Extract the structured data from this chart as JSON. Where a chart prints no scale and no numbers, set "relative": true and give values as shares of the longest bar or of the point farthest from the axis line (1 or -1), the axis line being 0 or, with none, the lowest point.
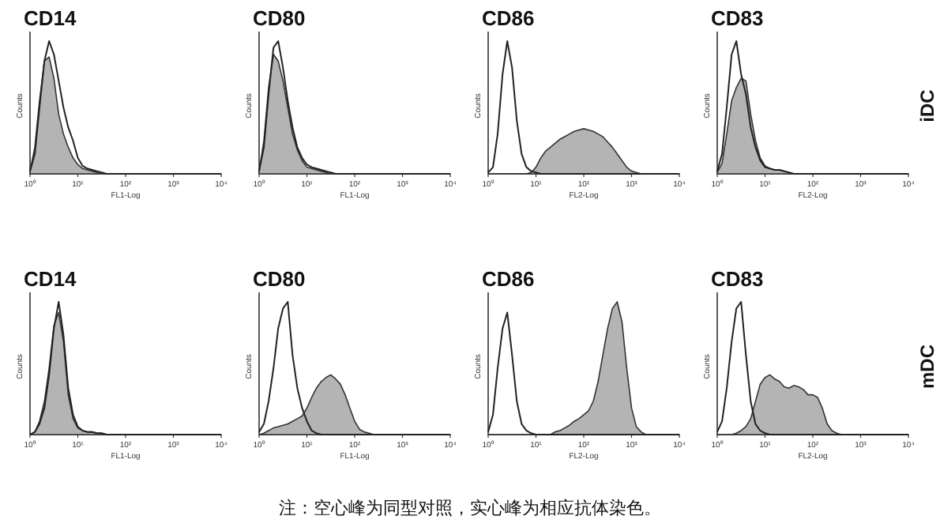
{
  "chart_data": [
    {
      "type": "area",
      "title": "CD14",
      "xlabel": "FL1-Log",
      "ylabel": "Counts",
      "log": "x",
      "relative": true,
      "xlim": [
        1,
        10000
      ],
      "xticks": [
        {
          "value": 1,
          "label": "10⁰"
        },
        {
          "value": 10,
          "label": "10¹"
        },
        {
          "value": 100,
          "label": "10²"
        },
        {
          "value": 1000,
          "label": "10³"
        },
        {
          "value": 10000,
          "label": "10⁴"
        }
      ],
      "x": [
        1,
        1.26,
        1.58,
        2,
        2.51,
        3.16,
        3.98,
        5.01,
        6.31,
        7.94,
        10,
        12.6,
        15.8,
        20,
        25.1,
        31.6,
        39.8,
        50.1,
        63.1,
        79.4,
        100,
        126,
        158,
        200,
        251,
        316,
        398,
        501,
        631,
        794,
        1000,
        1259,
        1585,
        1995,
        2512,
        3162,
        3981,
        5012,
        6310,
        7943,
        10000
      ],
      "series": [
        {
          "type": "area",
          "color": "#b4b4b4",
          "values": [
            0.02,
            0.2,
            0.55,
            0.85,
            0.88,
            0.72,
            0.45,
            0.3,
            0.2,
            0.12,
            0.07,
            0.04,
            0.03,
            0.02,
            0.01,
            0,
            0,
            0,
            0,
            0,
            0,
            0,
            0,
            0,
            0,
            0,
            0,
            0,
            0,
            0,
            0,
            0,
            0,
            0,
            0,
            0,
            0,
            0,
            0,
            0,
            0
          ]
        },
        {
          "type": "line",
          "color": "#222222",
          "values": [
            0.02,
            0.15,
            0.5,
            0.85,
            1.0,
            0.9,
            0.7,
            0.5,
            0.35,
            0.25,
            0.12,
            0.06,
            0.04,
            0.03,
            0.02,
            0.01,
            0,
            0,
            0,
            0,
            0,
            0,
            0,
            0,
            0,
            0,
            0,
            0,
            0,
            0,
            0,
            0,
            0,
            0,
            0,
            0,
            0,
            0,
            0,
            0,
            0
          ]
        }
      ]
    },
    {
      "type": "area",
      "title": "CD80",
      "xlabel": "FL1-Log",
      "ylabel": "Counts",
      "log": "x",
      "relative": true,
      "xlim": [
        1,
        10000
      ],
      "xticks": [
        {
          "value": 1,
          "label": "10⁰"
        },
        {
          "value": 10,
          "label": "10¹"
        },
        {
          "value": 100,
          "label": "10²"
        },
        {
          "value": 1000,
          "label": "10³"
        },
        {
          "value": 10000,
          "label": "10⁴"
        }
      ],
      "x": [
        1,
        1.26,
        1.58,
        2,
        2.51,
        3.16,
        3.98,
        5.01,
        6.31,
        7.94,
        10,
        12.6,
        15.8,
        20,
        25.1,
        31.6,
        39.8,
        50.1,
        63.1,
        79.4,
        100,
        126,
        158,
        200,
        251,
        316,
        398,
        501,
        631,
        794,
        1000,
        1259,
        1585,
        1995,
        2512,
        3162,
        3981,
        5012,
        6310,
        7943,
        10000
      ],
      "series": [
        {
          "type": "area",
          "color": "#b4b4b4",
          "values": [
            0.02,
            0.25,
            0.65,
            0.9,
            0.85,
            0.7,
            0.5,
            0.3,
            0.18,
            0.1,
            0.05,
            0.04,
            0.03,
            0.02,
            0.01,
            0,
            0,
            0,
            0,
            0,
            0,
            0,
            0,
            0,
            0,
            0,
            0,
            0,
            0,
            0,
            0,
            0,
            0,
            0,
            0,
            0,
            0,
            0,
            0,
            0,
            0
          ]
        },
        {
          "type": "line",
          "color": "#222222",
          "values": [
            0.02,
            0.2,
            0.6,
            0.95,
            1.0,
            0.8,
            0.55,
            0.35,
            0.2,
            0.12,
            0.07,
            0.05,
            0.04,
            0.03,
            0.02,
            0.01,
            0,
            0,
            0,
            0,
            0,
            0,
            0,
            0,
            0,
            0,
            0,
            0,
            0,
            0,
            0,
            0,
            0,
            0,
            0,
            0,
            0,
            0,
            0,
            0,
            0
          ]
        }
      ]
    },
    {
      "type": "area",
      "title": "CD86",
      "xlabel": "FL2-Log",
      "ylabel": "Counts",
      "log": "x",
      "relative": true,
      "xlim": [
        1,
        10000
      ],
      "xticks": [
        {
          "value": 1,
          "label": "10⁰"
        },
        {
          "value": 10,
          "label": "10¹"
        },
        {
          "value": 100,
          "label": "10²"
        },
        {
          "value": 1000,
          "label": "10³"
        },
        {
          "value": 10000,
          "label": "10⁴"
        }
      ],
      "x": [
        1,
        1.26,
        1.58,
        2,
        2.51,
        3.16,
        3.98,
        5.01,
        6.31,
        7.94,
        10,
        12.6,
        15.8,
        20,
        25.1,
        31.6,
        39.8,
        50.1,
        63.1,
        79.4,
        100,
        126,
        158,
        200,
        251,
        316,
        398,
        501,
        631,
        794,
        1000,
        1259,
        1585,
        1995,
        2512,
        3162,
        3981,
        5012,
        6310,
        7943,
        10000
      ],
      "series": [
        {
          "type": "area",
          "color": "#b4b4b4",
          "values": [
            0,
            0,
            0,
            0,
            0,
            0,
            0,
            0,
            0,
            0.01,
            0.05,
            0.12,
            0.17,
            0.2,
            0.23,
            0.26,
            0.28,
            0.3,
            0.32,
            0.33,
            0.34,
            0.33,
            0.32,
            0.3,
            0.28,
            0.24,
            0.2,
            0.15,
            0.1,
            0.05,
            0.02,
            0.01,
            0,
            0,
            0,
            0,
            0,
            0,
            0,
            0,
            0
          ]
        },
        {
          "type": "line",
          "color": "#222222",
          "values": [
            0.01,
            0.05,
            0.3,
            0.75,
            1.0,
            0.8,
            0.4,
            0.15,
            0.05,
            0.02,
            0.01,
            0,
            0,
            0,
            0,
            0,
            0,
            0,
            0,
            0,
            0,
            0,
            0,
            0,
            0,
            0,
            0,
            0,
            0,
            0,
            0,
            0,
            0,
            0,
            0,
            0,
            0,
            0,
            0,
            0,
            0
          ]
        }
      ]
    },
    {
      "type": "area",
      "title": "CD83",
      "xlabel": "FL2-Log",
      "ylabel": "Counts",
      "y2label": "iDC",
      "log": "x",
      "relative": true,
      "xlim": [
        1,
        10000
      ],
      "xticks": [
        {
          "value": 1,
          "label": "10⁰"
        },
        {
          "value": 10,
          "label": "10¹"
        },
        {
          "value": 100,
          "label": "10²"
        },
        {
          "value": 1000,
          "label": "10³"
        },
        {
          "value": 10000,
          "label": "10⁴"
        }
      ],
      "x": [
        1,
        1.26,
        1.58,
        2,
        2.51,
        3.16,
        3.98,
        5.01,
        6.31,
        7.94,
        10,
        12.6,
        15.8,
        20,
        25.1,
        31.6,
        39.8,
        50.1,
        63.1,
        79.4,
        100,
        126,
        158,
        200,
        251,
        316,
        398,
        501,
        631,
        794,
        1000,
        1259,
        1585,
        1995,
        2512,
        3162,
        3981,
        5012,
        6310,
        7943,
        10000
      ],
      "series": [
        {
          "type": "area",
          "color": "#b4b4b4",
          "values": [
            0.01,
            0.08,
            0.3,
            0.55,
            0.65,
            0.72,
            0.7,
            0.45,
            0.25,
            0.12,
            0.06,
            0.04,
            0.03,
            0.03,
            0.02,
            0.01,
            0,
            0,
            0,
            0,
            0,
            0,
            0,
            0,
            0,
            0,
            0,
            0,
            0,
            0,
            0,
            0,
            0,
            0,
            0,
            0,
            0,
            0,
            0,
            0,
            0
          ]
        },
        {
          "type": "line",
          "color": "#222222",
          "values": [
            0.02,
            0.15,
            0.5,
            0.9,
            1.0,
            0.75,
            0.6,
            0.35,
            0.2,
            0.1,
            0.05,
            0.04,
            0.03,
            0.03,
            0.02,
            0.01,
            0,
            0,
            0,
            0,
            0,
            0,
            0,
            0,
            0,
            0,
            0,
            0,
            0,
            0,
            0,
            0,
            0,
            0,
            0,
            0,
            0,
            0,
            0,
            0,
            0
          ]
        }
      ]
    },
    {
      "type": "area",
      "title": "CD14",
      "xlabel": "FL1-Log",
      "ylabel": "Counts",
      "log": "x",
      "relative": true,
      "xlim": [
        1,
        10000
      ],
      "xticks": [
        {
          "value": 1,
          "label": "10⁰"
        },
        {
          "value": 10,
          "label": "10¹"
        },
        {
          "value": 100,
          "label": "10²"
        },
        {
          "value": 1000,
          "label": "10³"
        },
        {
          "value": 10000,
          "label": "10⁴"
        }
      ],
      "x": [
        1,
        1.26,
        1.58,
        2,
        2.51,
        3.16,
        3.98,
        5.01,
        6.31,
        7.94,
        10,
        12.6,
        15.8,
        20,
        25.1,
        31.6,
        39.8,
        50.1,
        63.1,
        79.4,
        100,
        126,
        158,
        200,
        251,
        316,
        398,
        501,
        631,
        794,
        1000,
        1259,
        1585,
        1995,
        2512,
        3162,
        3981,
        5012,
        6310,
        7943,
        10000
      ],
      "series": [
        {
          "type": "area",
          "color": "#b4b4b4",
          "values": [
            0,
            0.02,
            0.1,
            0.25,
            0.5,
            0.82,
            0.92,
            0.7,
            0.3,
            0.12,
            0.05,
            0.03,
            0.02,
            0.02,
            0.01,
            0.01,
            0,
            0,
            0,
            0,
            0,
            0,
            0,
            0,
            0,
            0,
            0,
            0,
            0,
            0,
            0,
            0,
            0,
            0,
            0,
            0,
            0,
            0,
            0,
            0,
            0
          ]
        },
        {
          "type": "line",
          "color": "#222222",
          "values": [
            0,
            0.02,
            0.08,
            0.2,
            0.45,
            0.8,
            1.0,
            0.75,
            0.35,
            0.15,
            0.06,
            0.03,
            0.02,
            0.02,
            0.01,
            0.01,
            0,
            0,
            0,
            0,
            0,
            0,
            0,
            0,
            0,
            0,
            0,
            0,
            0,
            0,
            0,
            0,
            0,
            0,
            0,
            0,
            0,
            0,
            0,
            0,
            0
          ]
        }
      ]
    },
    {
      "type": "area",
      "title": "CD80",
      "xlabel": "FL1-Log",
      "ylabel": "Counts",
      "log": "x",
      "relative": true,
      "xlim": [
        1,
        10000
      ],
      "xticks": [
        {
          "value": 1,
          "label": "10⁰"
        },
        {
          "value": 10,
          "label": "10¹"
        },
        {
          "value": 100,
          "label": "10²"
        },
        {
          "value": 1000,
          "label": "10³"
        },
        {
          "value": 10000,
          "label": "10⁴"
        }
      ],
      "x": [
        1,
        1.26,
        1.58,
        2,
        2.51,
        3.16,
        3.98,
        5.01,
        6.31,
        7.94,
        10,
        12.6,
        15.8,
        20,
        25.1,
        31.6,
        39.8,
        50.1,
        63.1,
        79.4,
        100,
        126,
        158,
        200,
        251,
        316,
        398,
        501,
        631,
        794,
        1000,
        1259,
        1585,
        1995,
        2512,
        3162,
        3981,
        5012,
        6310,
        7943,
        10000
      ],
      "series": [
        {
          "type": "area",
          "color": "#b4b4b4",
          "values": [
            0,
            0.01,
            0.03,
            0.05,
            0.06,
            0.07,
            0.08,
            0.1,
            0.12,
            0.14,
            0.2,
            0.28,
            0.35,
            0.4,
            0.43,
            0.45,
            0.42,
            0.38,
            0.3,
            0.2,
            0.1,
            0.04,
            0.02,
            0.01,
            0,
            0,
            0,
            0,
            0,
            0,
            0,
            0,
            0,
            0,
            0,
            0,
            0,
            0,
            0,
            0,
            0
          ]
        },
        {
          "type": "line",
          "color": "#222222",
          "values": [
            0.02,
            0.08,
            0.25,
            0.5,
            0.8,
            0.95,
            1.0,
            0.6,
            0.35,
            0.2,
            0.1,
            0.03,
            0.01,
            0,
            0,
            0,
            0,
            0,
            0,
            0,
            0,
            0,
            0,
            0,
            0,
            0,
            0,
            0,
            0,
            0,
            0,
            0,
            0,
            0,
            0,
            0,
            0,
            0,
            0,
            0,
            0
          ]
        }
      ]
    },
    {
      "type": "area",
      "title": "CD86",
      "xlabel": "FL2-Log",
      "ylabel": "Counts",
      "log": "x",
      "relative": true,
      "xlim": [
        1,
        10000
      ],
      "xticks": [
        {
          "value": 1,
          "label": "10⁰"
        },
        {
          "value": 10,
          "label": "10¹"
        },
        {
          "value": 100,
          "label": "10²"
        },
        {
          "value": 1000,
          "label": "10³"
        },
        {
          "value": 10000,
          "label": "10⁴"
        }
      ],
      "x": [
        1,
        1.26,
        1.58,
        2,
        2.51,
        3.16,
        3.98,
        5.01,
        6.31,
        7.94,
        10,
        12.6,
        15.8,
        20,
        25.1,
        31.6,
        39.8,
        50.1,
        63.1,
        79.4,
        100,
        126,
        158,
        200,
        251,
        316,
        398,
        501,
        631,
        794,
        1000,
        1259,
        1585,
        1995,
        2512,
        3162,
        3981,
        5012,
        6310,
        7943,
        10000
      ],
      "series": [
        {
          "type": "area",
          "color": "#b4b4b4",
          "values": [
            0,
            0,
            0,
            0,
            0,
            0,
            0,
            0,
            0,
            0,
            0,
            0,
            0,
            0,
            0.02,
            0.03,
            0.05,
            0.07,
            0.1,
            0.12,
            0.15,
            0.18,
            0.25,
            0.4,
            0.6,
            0.8,
            0.95,
            1.0,
            0.85,
            0.5,
            0.2,
            0.06,
            0.02,
            0,
            0,
            0,
            0,
            0,
            0,
            0,
            0
          ]
        },
        {
          "type": "line",
          "color": "#222222",
          "values": [
            0.02,
            0.15,
            0.5,
            0.8,
            0.92,
            0.6,
            0.25,
            0.08,
            0.03,
            0.01,
            0,
            0,
            0,
            0,
            0,
            0,
            0,
            0,
            0,
            0,
            0,
            0,
            0,
            0,
            0,
            0,
            0,
            0,
            0,
            0,
            0,
            0,
            0,
            0,
            0,
            0,
            0,
            0,
            0,
            0,
            0
          ]
        }
      ]
    },
    {
      "type": "area",
      "title": "CD83",
      "xlabel": "FL2-Log",
      "ylabel": "Counts",
      "y2label": "mDC",
      "log": "x",
      "relative": true,
      "xlim": [
        1,
        10000
      ],
      "xticks": [
        {
          "value": 1,
          "label": "10⁰"
        },
        {
          "value": 10,
          "label": "10¹"
        },
        {
          "value": 100,
          "label": "10²"
        },
        {
          "value": 1000,
          "label": "10³"
        },
        {
          "value": 10000,
          "label": "10⁴"
        }
      ],
      "x": [
        1,
        1.26,
        1.58,
        2,
        2.51,
        3.16,
        3.98,
        5.01,
        6.31,
        7.94,
        10,
        12.6,
        15.8,
        20,
        25.1,
        31.6,
        39.8,
        50.1,
        63.1,
        79.4,
        100,
        126,
        158,
        200,
        251,
        316,
        398,
        501,
        631,
        794,
        1000,
        1259,
        1585,
        1995,
        2512,
        3162,
        3981,
        5012,
        6310,
        7943,
        10000
      ],
      "series": [
        {
          "type": "area",
          "color": "#b4b4b4",
          "values": [
            0,
            0,
            0,
            0,
            0.01,
            0.03,
            0.06,
            0.12,
            0.25,
            0.38,
            0.43,
            0.45,
            0.42,
            0.4,
            0.36,
            0.35,
            0.37,
            0.36,
            0.34,
            0.3,
            0.3,
            0.28,
            0.2,
            0.08,
            0.03,
            0.01,
            0,
            0,
            0,
            0,
            0,
            0,
            0,
            0,
            0,
            0,
            0,
            0,
            0,
            0,
            0
          ]
        },
        {
          "type": "line",
          "color": "#222222",
          "values": [
            0.02,
            0.1,
            0.35,
            0.7,
            0.95,
            1.0,
            0.6,
            0.25,
            0.08,
            0.03,
            0.01,
            0,
            0,
            0,
            0,
            0,
            0,
            0,
            0,
            0,
            0,
            0,
            0,
            0,
            0,
            0,
            0,
            0,
            0,
            0,
            0,
            0,
            0,
            0,
            0,
            0,
            0,
            0,
            0,
            0,
            0
          ]
        }
      ],
      "annotations": [
        "注：空心峰为同型对照，实心峰为相应抗体染色。"
      ]
    }
  ]
}
